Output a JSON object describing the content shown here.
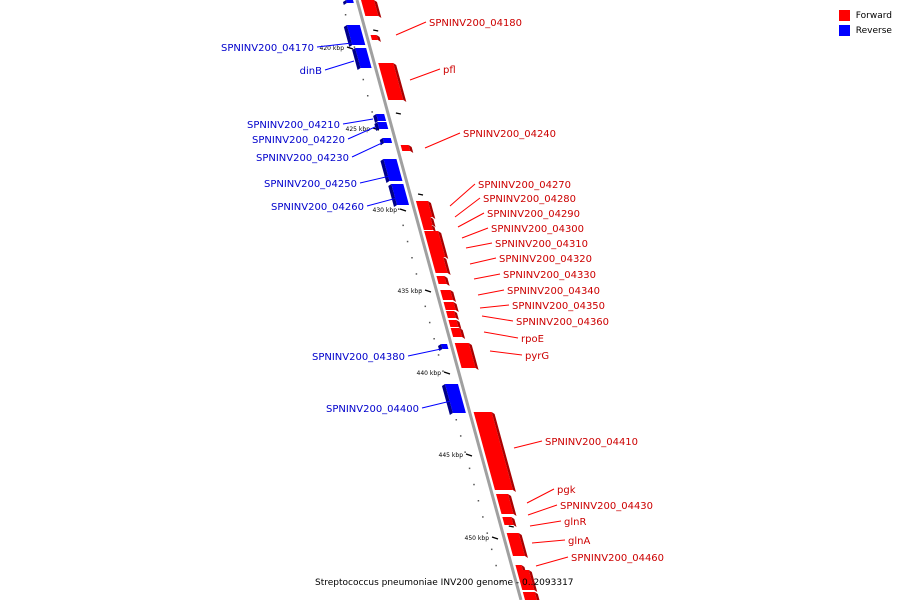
{
  "legend": {
    "forward_label": "Forward",
    "reverse_label": "Reverse",
    "forward_color": "#ff0000",
    "reverse_color": "#0000ff"
  },
  "caption": "Streptococcus pneumoniae INV200 genome - 0..2093317",
  "colors": {
    "forward": "#ff0000",
    "forward_dark": "#aa0000",
    "reverse": "#0000ff",
    "reverse_dark": "#00008a",
    "backbone": "#a0a0a0"
  },
  "scale_labels": [
    "420 kbp",
    "425 kbp",
    "430 kbp",
    "435 kbp",
    "440 kbp",
    "445 kbp",
    "450 kbp"
  ],
  "forward_genes": [
    "SPNINV200_04180",
    "pfl",
    "SPNINV200_04240",
    "SPNINV200_04270",
    "SPNINV200_04280",
    "SPNINV200_04290",
    "SPNINV200_04300",
    "SPNINV200_04310",
    "SPNINV200_04320",
    "SPNINV200_04330",
    "SPNINV200_04340",
    "SPNINV200_04350",
    "SPNINV200_04360",
    "rpoE",
    "pyrG",
    "SPNINV200_04410",
    "pgk",
    "SPNINV200_04430",
    "glnR",
    "glnA",
    "SPNINV200_04460"
  ],
  "reverse_genes": [
    "SPNINV200_04170",
    "dinB",
    "SPNINV200_04210",
    "SPNINV200_04220",
    "SPNINV200_04230",
    "SPNINV200_04250",
    "SPNINV200_04260",
    "SPNINV200_04380",
    "SPNINV200_04400"
  ]
}
